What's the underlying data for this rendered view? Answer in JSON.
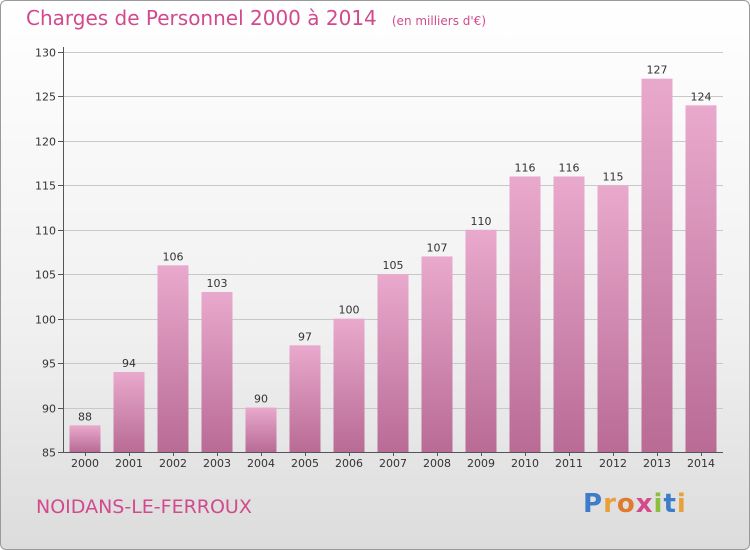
{
  "header": {
    "title": "Charges de Personnel 2000 à 2014",
    "subtitle": "(en milliers d'€)"
  },
  "footer": {
    "commune": "NOIDANS-LE-FERROUX",
    "logo_letters": [
      "P",
      "r",
      "o",
      "x",
      "i",
      "t",
      "i"
    ],
    "logo_colors": [
      "#3d7cc9",
      "#e8a13a",
      "#e07a2f",
      "#d34a8d",
      "#8cbf3f",
      "#3d7cc9",
      "#e8a13a"
    ]
  },
  "colors": {
    "title": "#d24a8e",
    "bar_top": "#e9a9cd",
    "bar_bottom": "#b96b95"
  },
  "chart_data": {
    "type": "bar",
    "categories": [
      "2000",
      "2001",
      "2002",
      "2003",
      "2004",
      "2005",
      "2006",
      "2007",
      "2008",
      "2009",
      "2010",
      "2011",
      "2012",
      "2013",
      "2014"
    ],
    "values": [
      88,
      94,
      106,
      103,
      90,
      97,
      100,
      105,
      107,
      110,
      116,
      116,
      115,
      127,
      124
    ],
    "title": "Charges de Personnel 2000 à 2014",
    "subtitle": "(en milliers d'€)",
    "xlabel": "",
    "ylabel": "",
    "ylim": [
      85,
      130
    ],
    "yticks": [
      85,
      90,
      95,
      100,
      105,
      110,
      115,
      120,
      125,
      130
    ],
    "grid": true,
    "legend": "none"
  }
}
